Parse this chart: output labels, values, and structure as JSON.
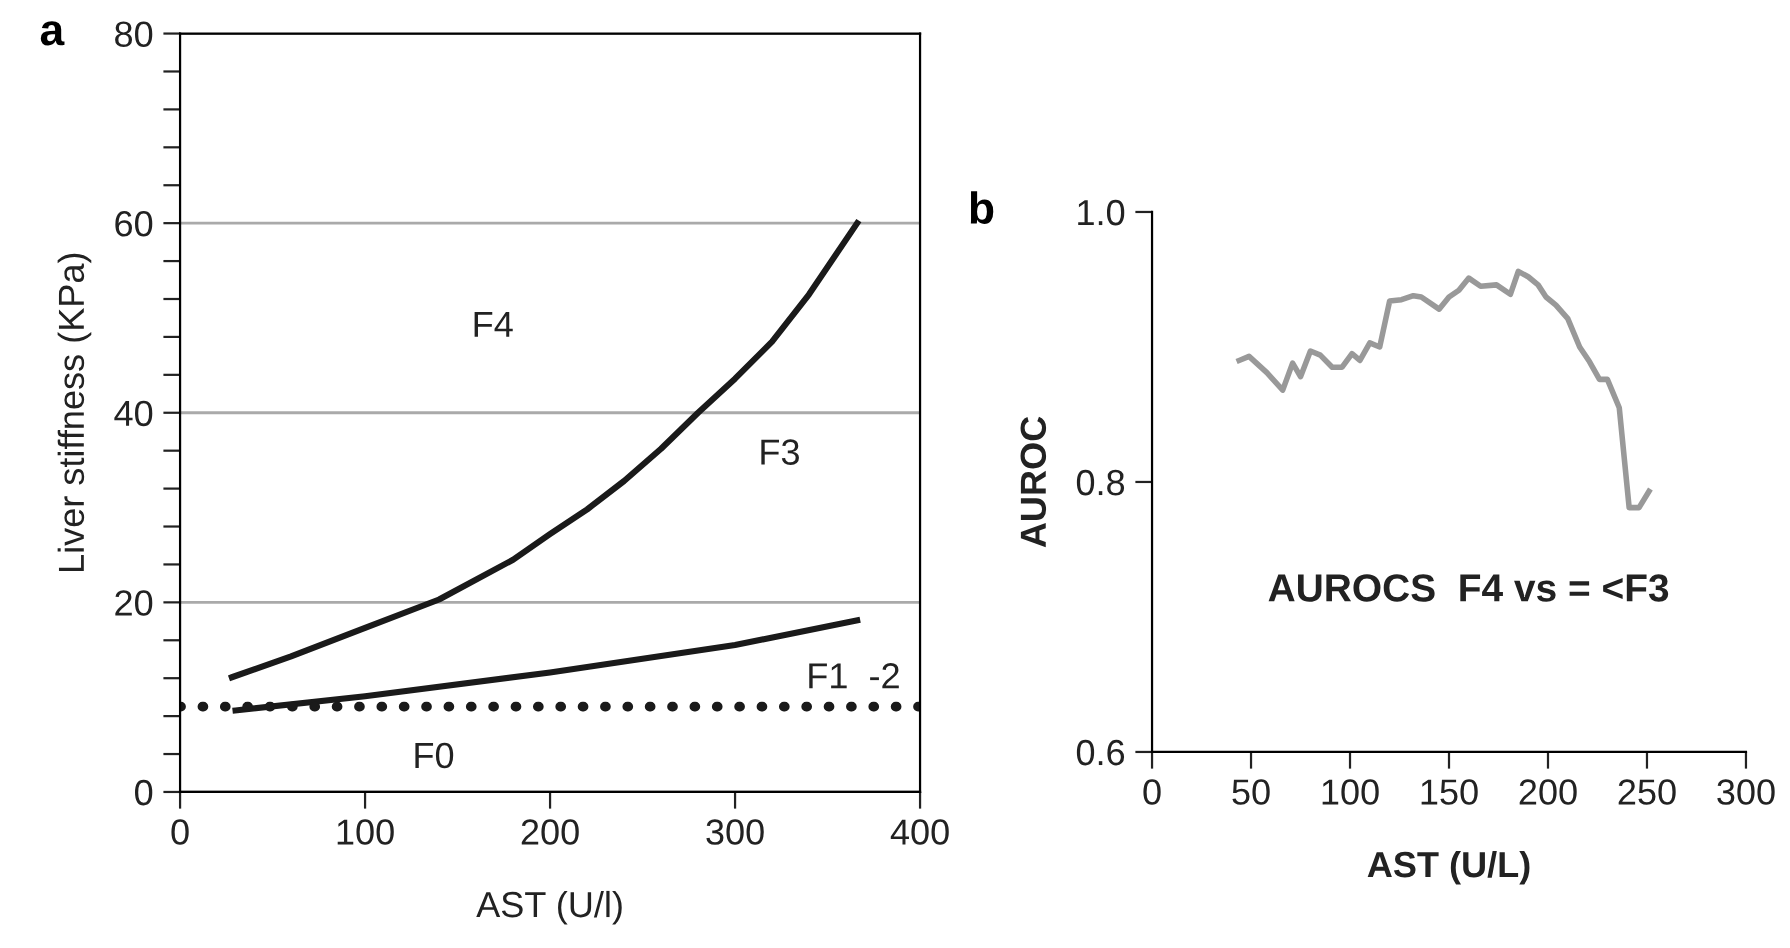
{
  "chart_data": [
    {
      "type": "line",
      "title": "a",
      "xlabel": "AST (U/l)",
      "ylabel": "Liver stiffness (KPa)",
      "xlim": [
        0,
        400
      ],
      "xticks": [
        0,
        100,
        200,
        300,
        400
      ],
      "ylim": [
        0,
        80
      ],
      "yticks": [
        0,
        {
          "value": 4,
          "label": null
        },
        {
          "value": 8,
          "label": null
        },
        {
          "value": 12,
          "label": null
        },
        {
          "value": 16,
          "label": null
        },
        20,
        {
          "value": 24,
          "label": null
        },
        {
          "value": 28,
          "label": null
        },
        {
          "value": 32,
          "label": null
        },
        {
          "value": 36,
          "label": null
        },
        40,
        {
          "value": 44,
          "label": null
        },
        {
          "value": 48,
          "label": null
        },
        {
          "value": 52,
          "label": null
        },
        {
          "value": 56,
          "label": null
        },
        60,
        {
          "value": 64,
          "label": null
        },
        {
          "value": 68,
          "label": null
        },
        {
          "value": 72,
          "label": null
        },
        {
          "value": 76,
          "label": null
        },
        80
      ],
      "grid": "y",
      "marker": "none",
      "line_style": "solid",
      "series": [
        {
          "color": "#1a1a1a",
          "x": [
            28,
            60,
            100,
            140,
            180,
            200,
            220,
            240,
            260,
            280,
            300,
            320,
            340,
            366
          ],
          "values": [
            12.1,
            14.3,
            17.3,
            20.3,
            24.5,
            27.2,
            29.8,
            32.8,
            36.2,
            40,
            43.6,
            47.5,
            52.5,
            60
          ]
        },
        {
          "color": "#1a1a1a",
          "x": [
            30,
            100,
            200,
            300,
            366
          ],
          "values": [
            8.6,
            10.1,
            12.6,
            15.5,
            18.1
          ]
        }
      ],
      "ref_lines": [
        {
          "axis": "y",
          "value": 9,
          "color": "#1a1a1a",
          "line_style": "dotted"
        }
      ],
      "annotations": [
        "F4",
        "F3",
        "F1  -2",
        "F0"
      ]
    },
    {
      "type": "line",
      "title": "b",
      "xlabel": "AST (U/L)",
      "ylabel": "AUROC",
      "xlim": [
        0,
        300
      ],
      "xticks": [
        0,
        50,
        100,
        150,
        200,
        250,
        300
      ],
      "ylim": [
        0.6,
        1.0
      ],
      "yticks": [
        0.6,
        0.8,
        {
          "value": 1.0,
          "label": "1.0"
        }
      ],
      "grid": false,
      "marker": "none",
      "line_style": "solid",
      "series": [
        {
          "color": "#999999",
          "x": [
            44,
            49,
            58,
            66,
            71,
            75,
            80,
            85,
            91,
            96,
            101,
            105,
            110,
            115,
            120,
            126,
            132,
            136,
            145,
            150,
            155,
            160,
            166,
            174,
            181,
            185,
            190,
            195,
            199,
            204,
            210,
            216,
            221,
            226,
            230,
            236,
            241,
            246,
            251
          ],
          "values": [
            0.89,
            0.893,
            0.881,
            0.868,
            0.888,
            0.878,
            0.897,
            0.894,
            0.885,
            0.885,
            0.895,
            0.89,
            0.903,
            0.9,
            0.934,
            0.935,
            0.938,
            0.937,
            0.928,
            0.937,
            0.942,
            0.951,
            0.945,
            0.946,
            0.939,
            0.956,
            0.952,
            0.946,
            0.937,
            0.931,
            0.921,
            0.9,
            0.889,
            0.876,
            0.876,
            0.855,
            0.781,
            0.781,
            0.793
          ]
        }
      ],
      "annotations": [
        "AUROCS  F4 vs = <F3"
      ]
    }
  ]
}
